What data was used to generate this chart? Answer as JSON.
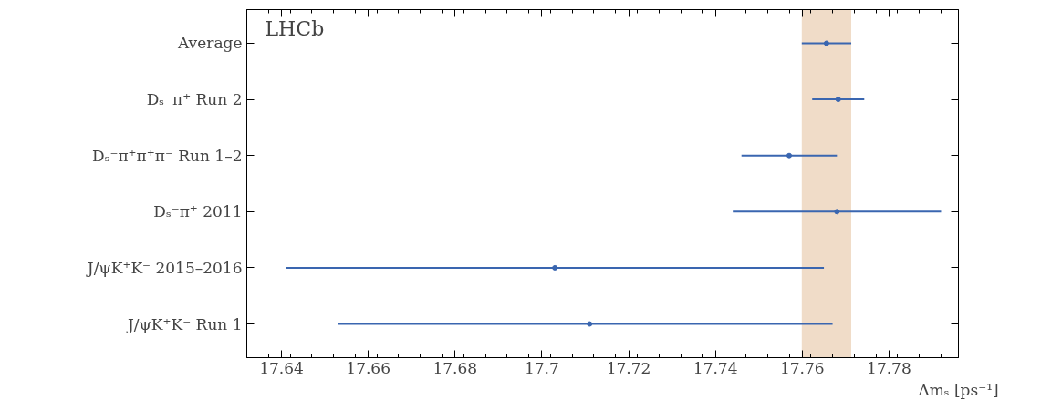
{
  "chart_data": {
    "type": "scatter",
    "orientation": "horizontal",
    "categories": [
      "Average",
      "Dₛ⁻π⁺ Run 2",
      "Dₛ⁻π⁺π⁺π⁻ Run 1–2",
      "Dₛ⁻π⁺ 2011",
      "J/ψK⁺K⁻ 2015–2016",
      "J/ψK⁺K⁻ Run 1"
    ],
    "series": [
      {
        "color": "#3a66b0",
        "values": [
          17.7656,
          17.7683,
          17.757,
          17.768,
          17.703,
          17.711
        ],
        "errors": [
          0.0057,
          0.006,
          0.011,
          0.024,
          0.062,
          [
            17.653,
            17.767
          ]
        ]
      }
    ],
    "xlim": [
      17.632,
      17.796
    ],
    "xticks": [
      17.64,
      17.66,
      17.68,
      17.7,
      17.72,
      17.74,
      17.76,
      17.78
    ],
    "xlabel": "Δmₛ [ps⁻¹]",
    "marker": "circle",
    "grid": false,
    "bands": [
      {
        "axis": "x",
        "from": 17.7599,
        "to": 17.7713,
        "color": "#f0dcc8"
      }
    ],
    "annotations": [
      "LHCb"
    ]
  }
}
